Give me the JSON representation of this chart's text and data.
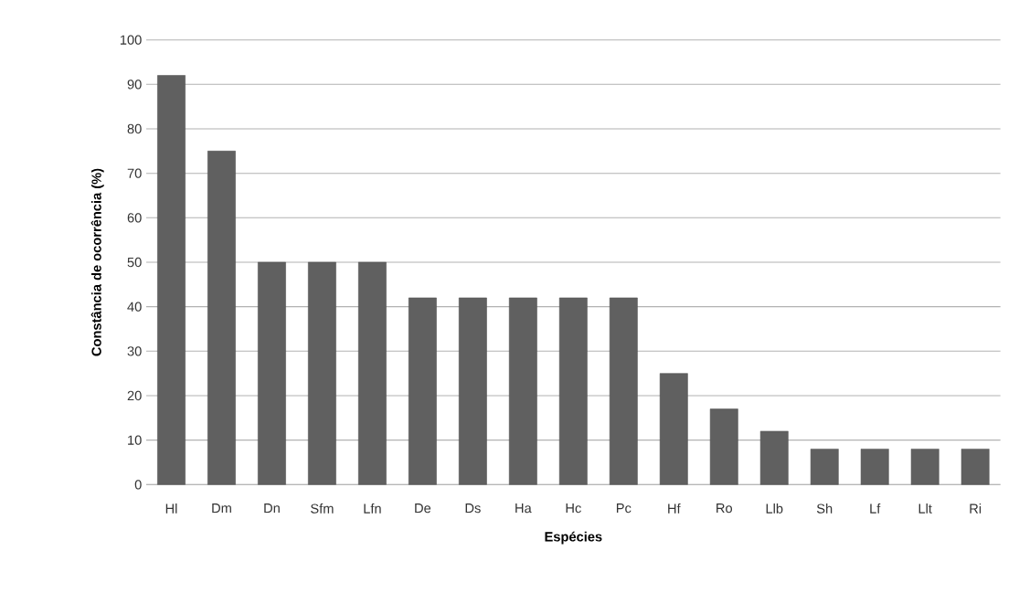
{
  "chart_data": {
    "type": "bar",
    "xlabel": "Espécies",
    "ylabel": "Constância de ocorrência (%)",
    "categories": [
      "Hl",
      "Dm",
      "Dn",
      "Sfm",
      "Lfn",
      "De",
      "Ds",
      "Ha",
      "Hc",
      "Pc",
      "Hf",
      "Ro",
      "Llb",
      "Sh",
      "Lf",
      "Llt",
      "Ri"
    ],
    "values": [
      92,
      75,
      50,
      50,
      50,
      42,
      42,
      42,
      42,
      42,
      25,
      17,
      12,
      8,
      8,
      8,
      8
    ],
    "color": "#606060",
    "ylim": [
      0,
      100
    ],
    "yticks": [
      0,
      10,
      20,
      30,
      40,
      50,
      60,
      70,
      80,
      90,
      100
    ],
    "grid": "y"
  }
}
